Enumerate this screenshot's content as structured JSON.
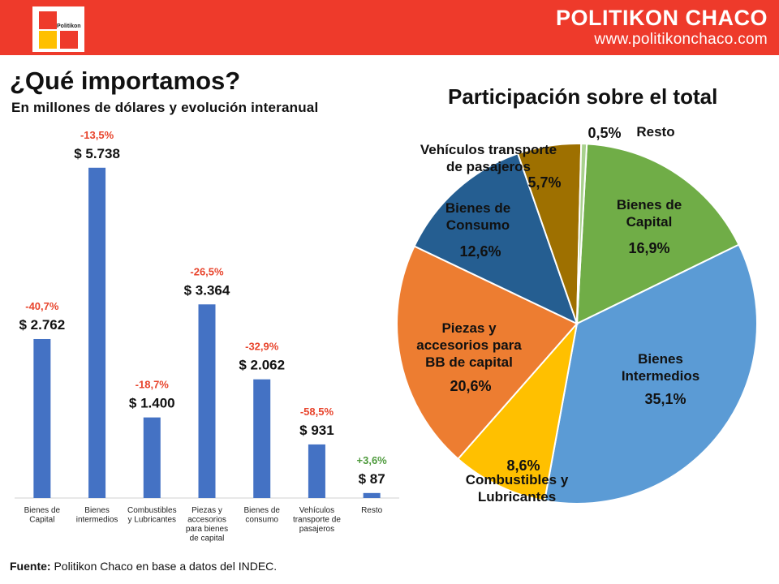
{
  "header": {
    "logo_text": "Politikon",
    "brand_name": "POLITIKON CHACO",
    "brand_url": "www.politikonchaco.com"
  },
  "title": "¿Qué importamos?",
  "subtitle": "En millones de dólares y evolución interanual",
  "pie_title": "Participación sobre el total",
  "source": {
    "label": "Fuente:",
    "text": "Politikon Chaco en base a datos del INDEC."
  },
  "colors": {
    "header_red": "#ee3a2b",
    "bar_blue": "#4472c4",
    "negative_red": "#e8442c",
    "positive_green": "#4e9a3c"
  },
  "chart_data": [
    {
      "type": "bar",
      "title": "¿Qué importamos?",
      "subtitle": "En millones de dólares y evolución interanual",
      "categories": [
        [
          "Bienes de",
          "Capital"
        ],
        [
          "Bienes",
          "intermedios"
        ],
        [
          "Combustibles",
          "y Lubricantes"
        ],
        [
          "Piezas y",
          "accesorios",
          "para bienes",
          "de capital"
        ],
        [
          "Bienes de",
          "consumo"
        ],
        [
          "Vehículos",
          "transporte de",
          "pasajeros"
        ],
        [
          "Resto"
        ]
      ],
      "values": [
        2762,
        5738,
        1400,
        3364,
        2062,
        931,
        87
      ],
      "value_labels": [
        "$ 2.762",
        "$ 5.738",
        "$ 1.400",
        "$ 3.364",
        "$ 2.062",
        "$ 931",
        "$ 87"
      ],
      "change_labels": [
        "-40,7%",
        "-13,5%",
        "-18,7%",
        "-26,5%",
        "-32,9%",
        "-58,5%",
        "+3,6%"
      ],
      "ylim": [
        0,
        6200
      ],
      "grid": false
    },
    {
      "type": "pie",
      "title": "Participación sobre el total",
      "slices": [
        {
          "label": [
            "Bienes de",
            "Capital"
          ],
          "value": 16.9,
          "pct_label": "16,9%",
          "color": "#70ad47"
        },
        {
          "label": [
            "Bienes",
            "Intermedios"
          ],
          "value": 35.1,
          "pct_label": "35,1%",
          "color": "#5b9bd5"
        },
        {
          "label": [
            "Combustibles y",
            "Lubricantes"
          ],
          "value": 8.6,
          "pct_label": "8,6%",
          "color": "#ffc000"
        },
        {
          "label": [
            "Piezas y",
            "accesorios para",
            "BB de capital"
          ],
          "value": 20.6,
          "pct_label": "20,6%",
          "color": "#ed7d31"
        },
        {
          "label": [
            "Bienes de",
            "Consumo"
          ],
          "value": 12.6,
          "pct_label": "12,6%",
          "color": "#255e91"
        },
        {
          "label": [
            "Vehículos transporte",
            "de pasajeros"
          ],
          "value": 5.7,
          "pct_label": "5,7%",
          "color": "#9e7000"
        },
        {
          "label": [
            "Resto"
          ],
          "value": 0.5,
          "pct_label": "0,5%",
          "color": "#a9d18e"
        }
      ]
    }
  ]
}
